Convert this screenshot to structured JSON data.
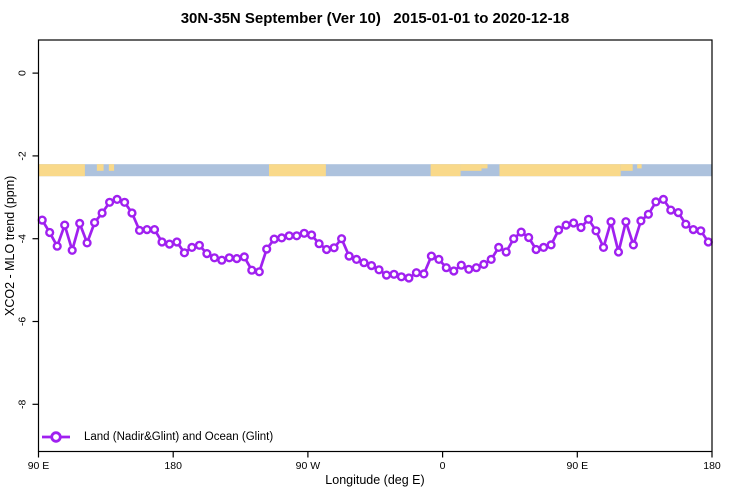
{
  "title": "30N-35N September (Ver 10)   2015-01-01 to 2020-12-18",
  "legend": {
    "label": "Land (Nadir&Glint) and Ocean (Glint)"
  },
  "frame_color": "#000000",
  "chart_data": {
    "type": "line",
    "title": "30N-35N September (Ver 10)   2015-01-01 to 2020-12-18",
    "xlabel": "Longitude (deg E)",
    "ylabel": "XCO2 - MLO trend (ppm)",
    "xlim": [
      90,
      540
    ],
    "ylim": [
      -9.14,
      0.8
    ],
    "grid": false,
    "legend_position": "bottom-left",
    "x_ticks": [
      {
        "pos": 90,
        "label": "90 E"
      },
      {
        "pos": 180,
        "label": "180"
      },
      {
        "pos": 270,
        "label": "90 W"
      },
      {
        "pos": 360,
        "label": "0"
      },
      {
        "pos": 450,
        "label": "90 E"
      },
      {
        "pos": 540,
        "label": "180"
      }
    ],
    "y_ticks": [
      {
        "pos": 0,
        "label": "0"
      },
      {
        "pos": -2,
        "label": "-2"
      },
      {
        "pos": -4,
        "label": "-4"
      },
      {
        "pos": -6,
        "label": "-6"
      },
      {
        "pos": -8,
        "label": "-8"
      }
    ],
    "series": [
      {
        "name": "Land (Nadir&Glint) and Ocean (Glint)",
        "color": "#A020F0",
        "marker": "open-circle",
        "x": [
          92.5,
          97.5,
          102.5,
          107.5,
          112.5,
          117.5,
          122.5,
          127.5,
          132.5,
          137.5,
          142.5,
          147.5,
          152.5,
          157.5,
          162.5,
          167.5,
          172.5,
          177.5,
          182.5,
          187.5,
          192.5,
          197.5,
          202.5,
          207.5,
          212.5,
          217.5,
          222.5,
          227.5,
          232.5,
          237.5,
          242.5,
          247.5,
          252.5,
          257.5,
          262.5,
          267.5,
          272.5,
          277.5,
          282.5,
          287.5,
          292.5,
          297.5,
          302.5,
          307.5,
          312.5,
          317.5,
          322.5,
          327.5,
          332.5,
          337.5,
          342.5,
          347.5,
          352.5,
          357.5,
          362.5,
          367.5,
          372.5,
          377.5,
          382.5,
          387.5,
          392.5,
          397.5,
          402.5,
          407.5,
          412.5,
          417.5,
          422.5,
          427.5,
          432.5,
          437.5,
          442.5,
          447.5,
          452.5,
          457.5,
          462.5,
          467.5,
          472.5,
          477.5,
          482.5,
          487.5,
          492.5,
          497.5,
          502.5,
          507.5,
          512.5,
          517.5,
          522.5,
          527.5,
          532.5,
          537.5
        ],
        "y": [
          -3.55,
          -3.85,
          -4.18,
          -3.67,
          -4.28,
          -3.63,
          -4.1,
          -3.61,
          -3.38,
          -3.12,
          -3.05,
          -3.12,
          -3.38,
          -3.8,
          -3.78,
          -3.78,
          -4.08,
          -4.13,
          -4.08,
          -4.34,
          -4.21,
          -4.16,
          -4.36,
          -4.46,
          -4.52,
          -4.46,
          -4.48,
          -4.44,
          -4.76,
          -4.8,
          -4.25,
          -4.01,
          -3.98,
          -3.93,
          -3.93,
          -3.87,
          -3.91,
          -4.12,
          -4.26,
          -4.22,
          -4.0,
          -4.42,
          -4.5,
          -4.58,
          -4.65,
          -4.75,
          -4.88,
          -4.86,
          -4.92,
          -4.95,
          -4.82,
          -4.85,
          -4.42,
          -4.5,
          -4.7,
          -4.78,
          -4.64,
          -4.74,
          -4.7,
          -4.62,
          -4.5,
          -4.21,
          -4.32,
          -4.0,
          -3.84,
          -3.97,
          -4.26,
          -4.21,
          -4.15,
          -3.79,
          -3.67,
          -3.62,
          -3.73,
          -3.53,
          -3.81,
          -4.21,
          -3.59,
          -4.32,
          -3.59,
          -4.15,
          -3.57,
          -3.41,
          -3.11,
          -3.05,
          -3.31,
          -3.37,
          -3.65,
          -3.78,
          -3.81,
          -4.08
        ]
      }
    ],
    "map_band": {
      "top_ppm": -2.2,
      "bottom_ppm": -2.49,
      "extent_deg": [
        90,
        540
      ],
      "ocean_color": "#ADC2DD",
      "land_color": "#F9D98A",
      "land_segments": [
        {
          "from": 90,
          "to": 121,
          "part": "full"
        },
        {
          "from": 129,
          "to": 133.5,
          "part": "top"
        },
        {
          "from": 137,
          "to": 140.5,
          "part": "top"
        },
        {
          "from": 244,
          "to": 282,
          "part": "full"
        },
        {
          "from": 352,
          "to": 372,
          "part": "full"
        },
        {
          "from": 372,
          "to": 386,
          "part": "top"
        },
        {
          "from": 386,
          "to": 390,
          "part": "topthird"
        },
        {
          "from": 398,
          "to": 479,
          "part": "full"
        },
        {
          "from": 479,
          "to": 487,
          "part": "top"
        },
        {
          "from": 490,
          "to": 493,
          "part": "topthird"
        }
      ]
    }
  }
}
